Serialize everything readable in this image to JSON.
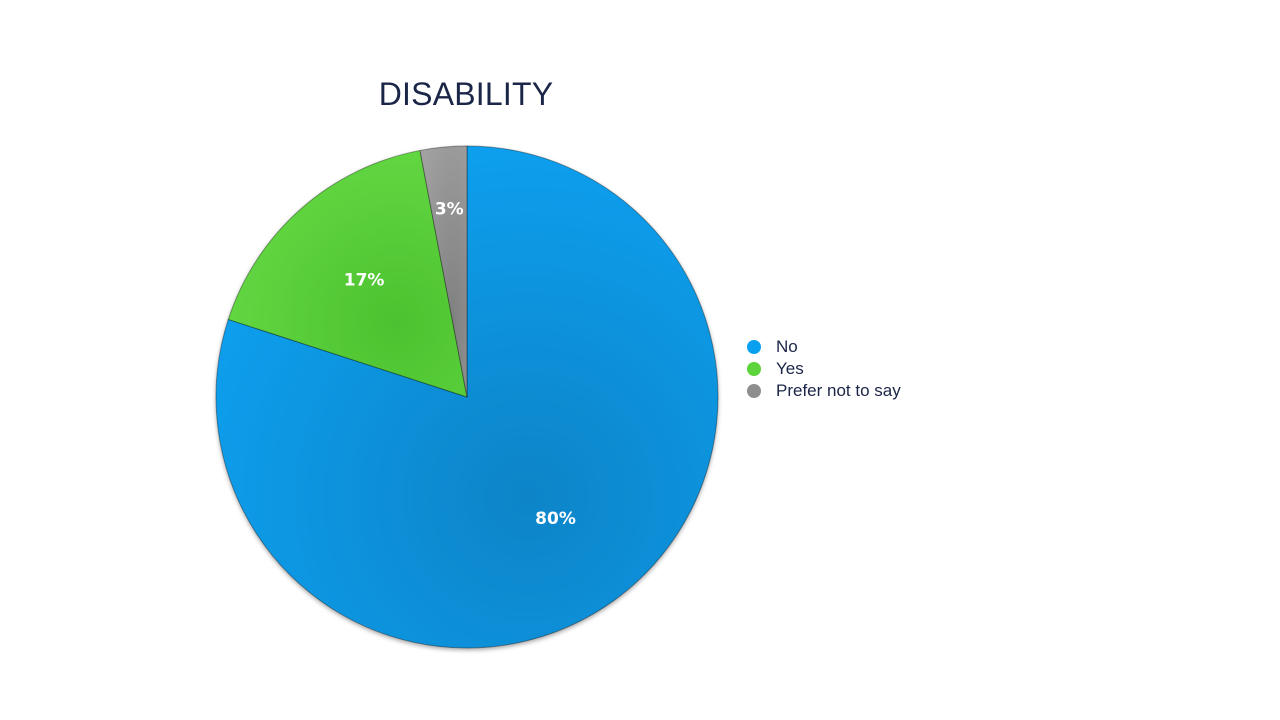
{
  "chart_data": {
    "type": "pie",
    "title": "DISABILITY",
    "categories": [
      "No",
      "Yes",
      "Prefer not to say"
    ],
    "values": [
      80,
      17,
      3
    ],
    "data_labels": [
      "80%",
      "17%",
      "3%"
    ],
    "colors": [
      "#0aa0f0",
      "#5dd43b",
      "#8e8e8e"
    ],
    "start_angle_deg": 0,
    "direction": "clockwise",
    "legend": "right"
  }
}
